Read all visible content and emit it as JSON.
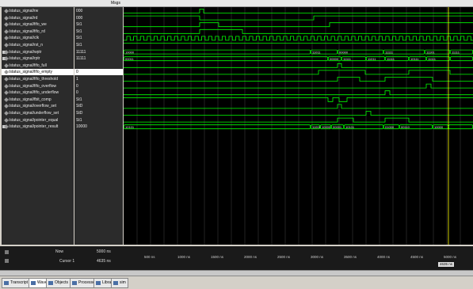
{
  "header": {
    "left_title": "",
    "msgs_label": "Msgs"
  },
  "signals": [
    {
      "name": "/status_signal/rw",
      "value": "000",
      "kind": "leaf"
    },
    {
      "name": "/status_signal/rd",
      "value": "000",
      "kind": "leaf"
    },
    {
      "name": "/status_signal/fifo_we",
      "value": "St1",
      "kind": "leaf"
    },
    {
      "name": "/status_signal/fifo_rd",
      "value": "St1",
      "kind": "leaf"
    },
    {
      "name": "/status_signal/clk",
      "value": "St1",
      "kind": "leaf"
    },
    {
      "name": "/status_signal/rst_n",
      "value": "St1",
      "kind": "leaf"
    },
    {
      "name": "/status_signal/wptr",
      "value": "11111",
      "kind": "bus"
    },
    {
      "name": "/status_signal/rptr",
      "value": "11111",
      "kind": "bus"
    },
    {
      "name": "/status_signal/fifo_full",
      "value": "",
      "kind": "leaf"
    },
    {
      "name": "/status_signal/fifo_empty",
      "value": "0",
      "kind": "leaf",
      "selected": true
    },
    {
      "name": "/status_signal/fifo_threshold",
      "value": "1",
      "kind": "leaf"
    },
    {
      "name": "/status_signal/fifo_overflow",
      "value": "0",
      "kind": "leaf"
    },
    {
      "name": "/status_signal/fifo_underflow",
      "value": "0",
      "kind": "leaf"
    },
    {
      "name": "/status_signal/fbit_comp",
      "value": "St1",
      "kind": "leaf"
    },
    {
      "name": "/status_signal/overflow_set",
      "value": "StD",
      "kind": "leaf"
    },
    {
      "name": "/status_signal/underflow_set",
      "value": "StD",
      "kind": "leaf"
    },
    {
      "name": "/status_signal/pointer_equal",
      "value": "St1",
      "kind": "leaf"
    },
    {
      "name": "/status_signal/pointer_result",
      "value": "10000",
      "kind": "bus"
    }
  ],
  "bus_labels": {
    "wptr": [
      "10000",
      "11011",
      "00000",
      "11111",
      "11101",
      "11111"
    ],
    "rptr": [
      "00011",
      "00000",
      "11111",
      "11011",
      "11111",
      "10111",
      "11111"
    ],
    "pointer_result": [
      "10101",
      "11000",
      "10000",
      "00001",
      "10101",
      "01000",
      "00110",
      "10000"
    ]
  },
  "status": {
    "now_label": "Now",
    "now_value": "5000 ns",
    "cursor_label": "Cursor 1",
    "cursor_value": "4635 ns",
    "cursor_box": "4635 ns"
  },
  "timeline_ticks": [
    "500 ns",
    "1000 ns",
    "1500 ns",
    "2000 ns",
    "2500 ns",
    "3000 ns",
    "3500 ns",
    "4000 ns",
    "4500 ns",
    "5000 ns"
  ],
  "tabs": [
    {
      "label": "Transcript",
      "icon": "transcript-icon"
    },
    {
      "label": "Wave",
      "icon": "wave-icon"
    },
    {
      "label": "Objects",
      "icon": "objects-icon"
    },
    {
      "label": "Processes",
      "icon": "processes-icon"
    },
    {
      "label": "Library",
      "icon": "library-icon"
    },
    {
      "label": "sim",
      "icon": "sim-icon"
    }
  ],
  "colors": {
    "wave": "#00ff00",
    "cursor": "#ffff00",
    "background": "#000000"
  }
}
